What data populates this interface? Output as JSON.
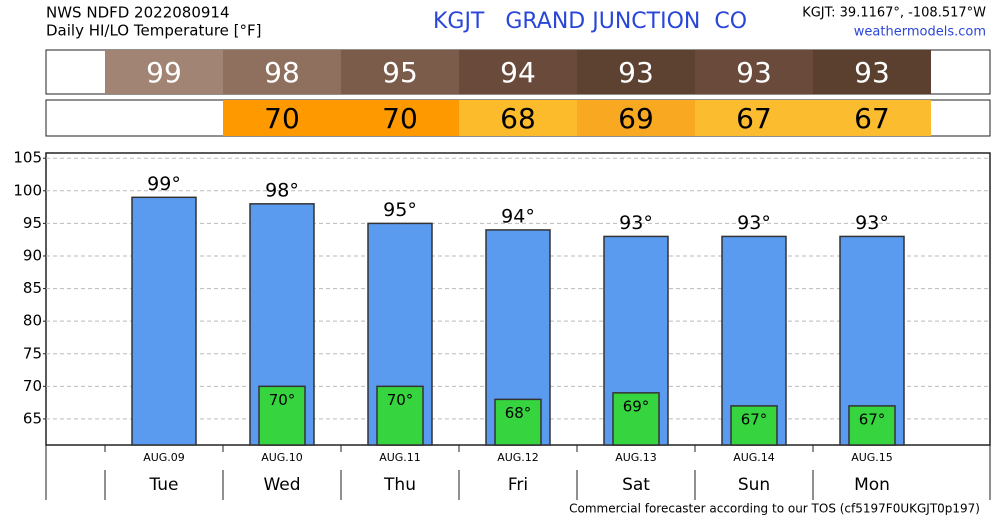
{
  "chart_data": {
    "type": "bar",
    "title": "KGJT   GRAND JUNCTION  CO",
    "source": "NWS NDFD 2022080914",
    "subtitle": "Daily HI/LO Temperature [°F]",
    "location": "KGJT: 39.1167°, -108.517°W",
    "website": "weathermodels.com",
    "footer": "Commercial forecaster according to our TOS (cf5197F0UKGJT0p197)",
    "categories": [
      "AUG.09",
      "AUG.10",
      "AUG.11",
      "AUG.12",
      "AUG.13",
      "AUG.14",
      "AUG.15"
    ],
    "days": [
      "Tue",
      "Wed",
      "Thu",
      "Fri",
      "Sat",
      "Sun",
      "Mon"
    ],
    "series": [
      {
        "name": "HI",
        "color": "#5b9bef",
        "values": [
          99,
          98,
          95,
          94,
          93,
          93,
          93
        ],
        "value_labels": [
          "99°",
          "98°",
          "95°",
          "94°",
          "93°",
          "93°",
          "93°"
        ],
        "strip_colors": [
          "#a28474",
          "#8f6f5e",
          "#7b5b4a",
          "#6a4b3b",
          "#5d4131",
          "#6a4b3b",
          "#5b3f2f"
        ]
      },
      {
        "name": "LO",
        "color": "#36d43f",
        "values": [
          null,
          70,
          70,
          68,
          69,
          67,
          67
        ],
        "value_labels": [
          null,
          "70°",
          "70°",
          "68°",
          "69°",
          "67°",
          "67°"
        ],
        "strip_colors": [
          null,
          "#ff9900",
          "#ff9900",
          "#fbbb2a",
          "#f9a821",
          "#fbbd2f",
          "#fbbd2f"
        ]
      }
    ],
    "ylim": [
      61,
      105.8
    ],
    "yticks": [
      65,
      70,
      75,
      80,
      85,
      90,
      95,
      100,
      105
    ],
    "grid": true
  }
}
